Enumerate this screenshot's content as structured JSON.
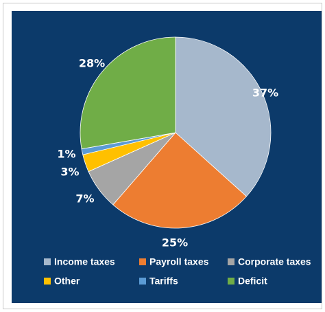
{
  "colors": {
    "background": "#0c3a6a",
    "text": "#ffffff"
  },
  "chart_data": {
    "type": "pie",
    "title": "",
    "slices": [
      {
        "name": "Income taxes",
        "value": 37,
        "label": "37%",
        "color": "#a6b8cc"
      },
      {
        "name": "Payroll taxes",
        "value": 25,
        "label": "25%",
        "color": "#ed7d31"
      },
      {
        "name": "Corporate taxes",
        "value": 7,
        "label": "7%",
        "color": "#a5a5a5"
      },
      {
        "name": "Other",
        "value": 3,
        "label": "3%",
        "color": "#ffc000"
      },
      {
        "name": "Tariffs",
        "value": 1,
        "label": "1%",
        "color": "#5b9bd5"
      },
      {
        "name": "Deficit",
        "value": 28,
        "label": "28%",
        "color": "#70ad47"
      }
    ],
    "start_angle_deg": 0,
    "direction": "clockwise",
    "legend_placement": "bottom"
  }
}
